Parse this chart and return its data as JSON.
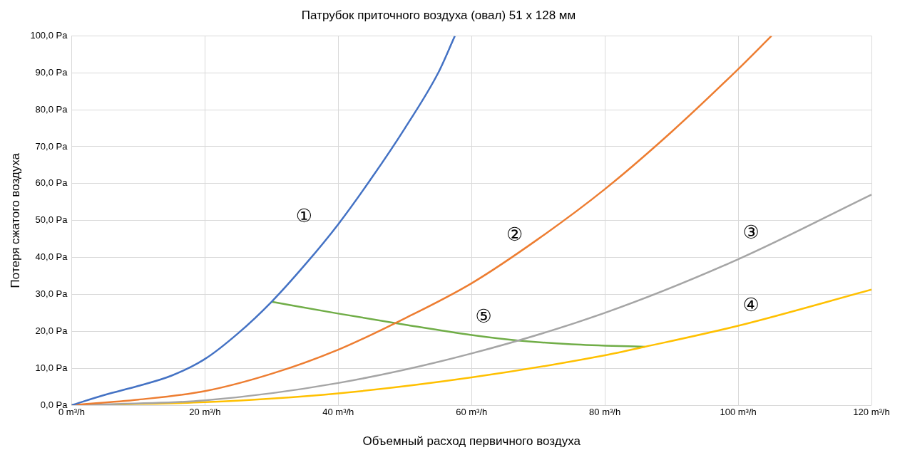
{
  "chart_data": {
    "type": "line",
    "title": "Патрубок приточного воздуха (овал) 51 x 128 мм",
    "xlabel": "Объемный расход первичного воздуха",
    "ylabel": "Потеря сжатого воздуха",
    "series": [
      {
        "name": "①",
        "color": "#4472c4",
        "x": [
          0,
          5,
          10,
          15,
          20,
          25,
          30,
          35,
          40,
          45,
          50,
          55,
          57.5
        ],
        "values": [
          0,
          2.8,
          5.2,
          8,
          12.5,
          19.5,
          28,
          38,
          49,
          61.5,
          75,
          90,
          100
        ]
      },
      {
        "name": "②",
        "color": "#ed7d31",
        "x": [
          0,
          10,
          20,
          30,
          40,
          50,
          60,
          70,
          80,
          90,
          100,
          105
        ],
        "values": [
          0,
          1.5,
          3.8,
          8.5,
          15,
          23.5,
          33,
          45,
          58.5,
          74,
          91,
          100
        ]
      },
      {
        "name": "③",
        "color": "#a5a5a5",
        "x": [
          0,
          20,
          40,
          60,
          80,
          100,
          120
        ],
        "values": [
          0,
          1.3,
          6,
          14,
          25,
          39.5,
          57
        ]
      },
      {
        "name": "④",
        "color": "#ffc000",
        "x": [
          0,
          20,
          40,
          60,
          80,
          86,
          100,
          120
        ],
        "values": [
          0,
          0.8,
          3.2,
          7.5,
          13.5,
          15.8,
          21.5,
          31.3
        ]
      },
      {
        "name": "⑤",
        "color": "#70ad47",
        "x": [
          30,
          40,
          50,
          60,
          67,
          75,
          86
        ],
        "values": [
          28,
          24.8,
          21.8,
          19,
          17.5,
          16.5,
          15.8
        ]
      }
    ],
    "xlim": [
      0,
      120
    ],
    "xticks": [
      {
        "value": 0,
        "label": "0 m³/h"
      },
      {
        "value": 20,
        "label": "20 m³/h"
      },
      {
        "value": 40,
        "label": "40 m³/h"
      },
      {
        "value": 60,
        "label": "60 m³/h"
      },
      {
        "value": 80,
        "label": "80 m³/h"
      },
      {
        "value": 100,
        "label": "100 m³/h"
      },
      {
        "value": 120,
        "label": "120 m³/h"
      }
    ],
    "ylim": [
      0,
      100
    ],
    "yticks": [
      {
        "value": 0,
        "label": "0,0 Pa"
      },
      {
        "value": 10,
        "label": "10,0 Pa"
      },
      {
        "value": 20,
        "label": "20,0 Pa"
      },
      {
        "value": 30,
        "label": "30,0 Pa"
      },
      {
        "value": 40,
        "label": "40,0 Pa"
      },
      {
        "value": 50,
        "label": "50,0 Pa"
      },
      {
        "value": 60,
        "label": "60,0 Pa"
      },
      {
        "value": 70,
        "label": "70,0 Pa"
      },
      {
        "value": 80,
        "label": "80,0 Pa"
      },
      {
        "value": 90,
        "label": "90,0 Pa"
      },
      {
        "value": 100,
        "label": "100,0 Pa"
      }
    ],
    "grid": true,
    "legend": false,
    "marker": "none",
    "line_style": "solid"
  }
}
